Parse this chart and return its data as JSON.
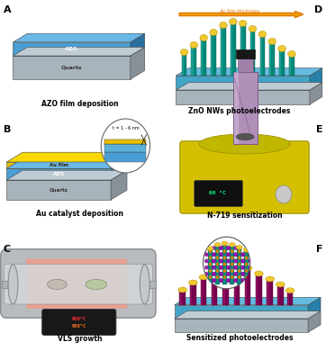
{
  "labels": {
    "A": "AZO film deposition",
    "B": "Au catalyst deposition",
    "C": "VLS growth",
    "D": "ZnO NWs photoelectrodes",
    "E": "N-719 sensitization",
    "F": "Sensitized photoelectrodes"
  },
  "colors": {
    "azo": "#4a9ed4",
    "azo_top": "#6ab8e8",
    "azo_side": "#2a6ea0",
    "quartz": "#a8b4bc",
    "quartz_top": "#c0ccd4",
    "quartz_side": "#889098",
    "au_film": "#e8c000",
    "au_film_top": "#f8d800",
    "au_film_side": "#b09000",
    "au_tip": "#f0c830",
    "zno_teal": "#00897b",
    "zno_teal_light": "#26a69a",
    "zno_teal_dark": "#00574b",
    "zno_base_blue": "#42a5c8",
    "zno_base_top": "#64bce0",
    "zno_base_side": "#2880a8",
    "dye_maroon": "#780050",
    "dye_maroon_light": "#a0206a",
    "dye_maroon_dark": "#500030",
    "hotplate_yellow": "#d4c000",
    "hotplate_dark": "#a09000",
    "background": "#ffffff",
    "arrow_orange": "#e07800",
    "arrow_fill": "#f0a000",
    "tube_gray": "#b0b4b8",
    "tube_light": "#d0d4d8",
    "heat_salmon": "#e8a090",
    "text_black": "#000000"
  }
}
